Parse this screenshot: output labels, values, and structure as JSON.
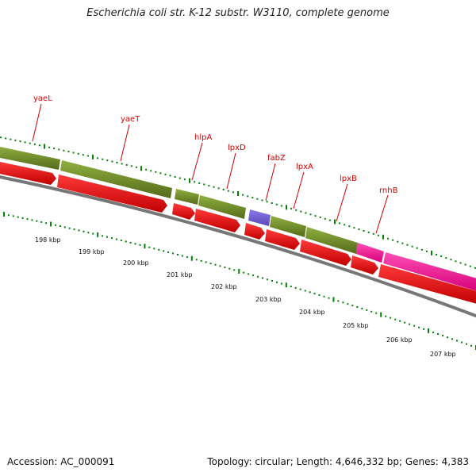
{
  "title": "Escherichia coli str. K-12 substr. W3110, complete genome",
  "footer": {
    "accession": "Accession: AC_000091",
    "stats": "Topology: circular; Length: 4,646,332 bp; Genes: 4,383"
  },
  "colors": {
    "cds_red": "#ff0000",
    "gene_green": "#6b8e23",
    "gene_blue": "#6a5acd",
    "gene_pink": "#ff1493",
    "tick_green": "#008000",
    "label_red": "#d40000",
    "backbone_gray": "#777777"
  },
  "kbp_labels": [
    "198 kbp",
    "199 kbp",
    "200 kbp",
    "201 kbp",
    "202 kbp",
    "203 kbp",
    "204 kbp",
    "205 kbp",
    "206 kbp",
    "207 kbp"
  ],
  "gene_labels": [
    "yaeL",
    "yaeT",
    "hlpA",
    "lpxD",
    "fabZ",
    "lpxA",
    "lpxB",
    "rnhB"
  ]
}
